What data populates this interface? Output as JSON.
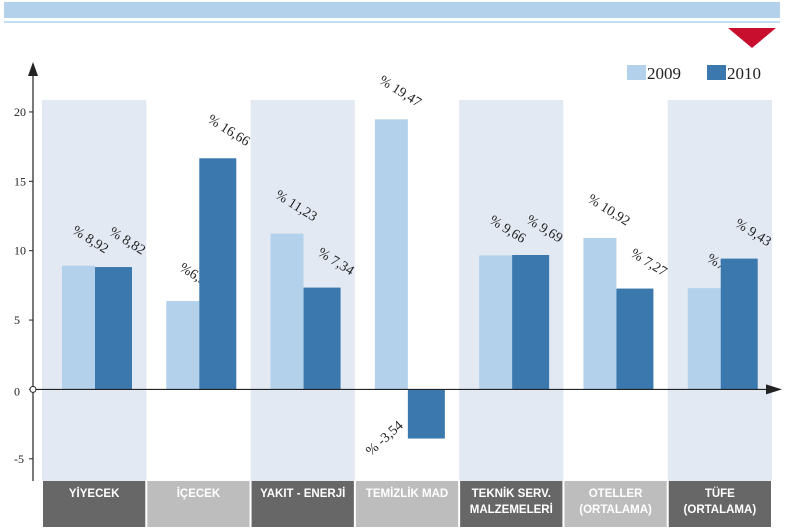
{
  "chart_data": {
    "type": "bar",
    "categories": [
      "YİYECEK",
      "İÇECEK",
      "YAKIT - ENERJİ",
      "TEMİZLİK MAD",
      "TEKNİK SERV.\nMALZEMELERİ",
      "OTELLER\n(ORTALAMA)",
      "TÜFE\n(ORTALAMA)"
    ],
    "series": [
      {
        "name": "2009",
        "color": "#b3d1ea",
        "values": [
          8.92,
          6.37,
          11.23,
          19.47,
          9.66,
          10.92,
          7.3
        ],
        "value_labels": [
          "% 8,92",
          "%6,37",
          "% 11,23",
          "% 19,47",
          "% 9,66",
          "% 10,92",
          "%7,3"
        ]
      },
      {
        "name": "2010",
        "color": "#3a78ad",
        "values": [
          8.82,
          16.66,
          7.34,
          -3.54,
          9.69,
          7.27,
          9.43
        ],
        "value_labels": [
          "% 8,82",
          "% 16,66",
          "% 7,34",
          "% -3,54",
          "% 9,69",
          "% 7,27",
          "% 9,43"
        ]
      }
    ],
    "ylim": [
      -6.6,
      23.6
    ],
    "yticks": [
      -5,
      0,
      5,
      10,
      15,
      20
    ],
    "legend": "top-right"
  }
}
